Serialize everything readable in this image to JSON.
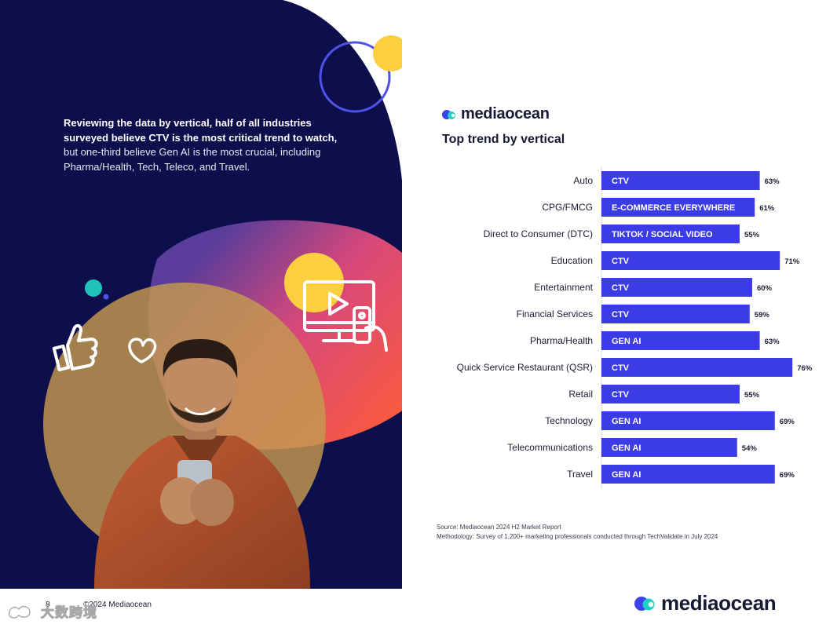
{
  "intro": {
    "bold_text": "Reviewing the data by vertical, half of all industries surveyed believe CTV is the most critical trend to watch,",
    "normal_text": "but one-third believe Gen AI is the most crucial, including Pharma/Health, Tech, Teleco, and Travel."
  },
  "brand": {
    "name": "mediaocean"
  },
  "footer": {
    "page_number": "8",
    "copyright": "©2024 Mediaocean",
    "watermark": "大数跨境"
  },
  "source_note": {
    "source": "Source: Mediaocean 2024 H2 Market Report",
    "methodology": "Methodology: Survey of 1,200+ marketing professionals conducted through TechValidate in July 2024"
  },
  "colors": {
    "bar": "#3c3ce6",
    "navy": "#0d0f4c",
    "logo_blue": "#3a44e8",
    "logo_teal": "#1fd0c4",
    "yellow": "#fbcf3f",
    "coral": "#fb5b3c"
  },
  "icons": [
    "thumbs-up-icon",
    "heart-icon",
    "monitor-play-icon",
    "remote-control-icon"
  ],
  "chart_data": {
    "type": "bar",
    "orientation": "horizontal",
    "title": "Top trend by vertical",
    "xlim": [
      0,
      100
    ],
    "categories": [
      "Auto",
      "CPG/FMCG",
      "Direct to Consumer (DTC)",
      "Education",
      "Entertainment",
      "Financial Services",
      "Pharma/Health",
      "Quick Service Restaurant (QSR)",
      "Retail",
      "Technology",
      "Telecommunications",
      "Travel"
    ],
    "trends": [
      "CTV",
      "E-COMMERCE EVERYWHERE",
      "TIKTOK / SOCIAL VIDEO",
      "CTV",
      "CTV",
      "CTV",
      "GEN AI",
      "CTV",
      "CTV",
      "GEN AI",
      "GEN AI",
      "GEN AI"
    ],
    "values": [
      63,
      61,
      55,
      71,
      60,
      59,
      63,
      76,
      55,
      69,
      54,
      69
    ],
    "value_labels": [
      "63%",
      "61%",
      "55%",
      "71%",
      "60%",
      "59%",
      "63%",
      "76%",
      "55%",
      "69%",
      "54%",
      "69%"
    ]
  }
}
